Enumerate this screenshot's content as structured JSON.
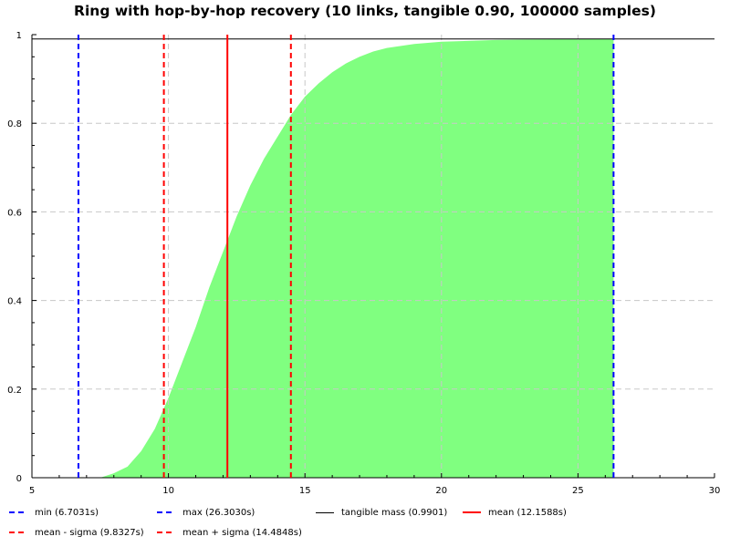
{
  "chart_data": {
    "type": "area",
    "title": "Ring with hop-by-hop recovery (10 links, tangible 0.90, 100000 samples)",
    "xlabel": "",
    "ylabel": "",
    "xlim": [
      5,
      30
    ],
    "ylim": [
      0,
      1
    ],
    "x_ticks": [
      "5",
      "10",
      "15",
      "20",
      "25",
      "30"
    ],
    "y_ticks": [
      "0",
      "0.2",
      "0.4",
      "0.6",
      "0.8",
      "1"
    ],
    "grid": true,
    "legend_position": "bottom",
    "fill_color": "#80ff80",
    "cdf_points": [
      {
        "x": 6.7031,
        "y": 0.0
      },
      {
        "x": 7.5,
        "y": 0.0
      },
      {
        "x": 8.0,
        "y": 0.01
      },
      {
        "x": 8.5,
        "y": 0.025
      },
      {
        "x": 9.0,
        "y": 0.06
      },
      {
        "x": 9.5,
        "y": 0.11
      },
      {
        "x": 10.0,
        "y": 0.18
      },
      {
        "x": 10.5,
        "y": 0.26
      },
      {
        "x": 11.0,
        "y": 0.34
      },
      {
        "x": 11.5,
        "y": 0.43
      },
      {
        "x": 12.0,
        "y": 0.51
      },
      {
        "x": 12.5,
        "y": 0.59
      },
      {
        "x": 13.0,
        "y": 0.66
      },
      {
        "x": 13.5,
        "y": 0.72
      },
      {
        "x": 14.0,
        "y": 0.77
      },
      {
        "x": 14.5,
        "y": 0.82
      },
      {
        "x": 15.0,
        "y": 0.86
      },
      {
        "x": 15.5,
        "y": 0.89
      },
      {
        "x": 16.0,
        "y": 0.915
      },
      {
        "x": 16.5,
        "y": 0.935
      },
      {
        "x": 17.0,
        "y": 0.95
      },
      {
        "x": 17.5,
        "y": 0.962
      },
      {
        "x": 18.0,
        "y": 0.97
      },
      {
        "x": 19.0,
        "y": 0.979
      },
      {
        "x": 20.0,
        "y": 0.984
      },
      {
        "x": 22.0,
        "y": 0.988
      },
      {
        "x": 24.0,
        "y": 0.9895
      },
      {
        "x": 26.303,
        "y": 0.9901
      }
    ],
    "markers": [
      {
        "name": "min (6.7031s)",
        "value": 6.7031,
        "color": "#0000ff",
        "dash": true
      },
      {
        "name": "max (26.3030s)",
        "value": 26.303,
        "color": "#0000ff",
        "dash": true
      },
      {
        "name": "mean (12.1588s)",
        "value": 12.1588,
        "color": "#ff0000",
        "dash": false
      },
      {
        "name": "mean - sigma (9.8327s)",
        "value": 9.8327,
        "color": "#ff0000",
        "dash": true
      },
      {
        "name": "mean + sigma (14.4848s)",
        "value": 14.4848,
        "color": "#ff0000",
        "dash": true
      }
    ],
    "tangible_mass": {
      "name": "tangible mass (0.9901)",
      "value": 0.9901,
      "color": "#000000"
    },
    "legend": [
      {
        "label": "min (6.7031s)",
        "color": "#0000ff",
        "style": "dashed"
      },
      {
        "label": "max (26.3030s)",
        "color": "#0000ff",
        "style": "dashed"
      },
      {
        "label": "tangible mass (0.9901)",
        "color": "#000000",
        "style": "solid-thin"
      },
      {
        "label": "mean (12.1588s)",
        "color": "#ff0000",
        "style": "solid"
      },
      {
        "label": "mean - sigma (9.8327s)",
        "color": "#ff0000",
        "style": "dashed"
      },
      {
        "label": "mean + sigma (14.4848s)",
        "color": "#ff0000",
        "style": "dashed"
      }
    ]
  }
}
